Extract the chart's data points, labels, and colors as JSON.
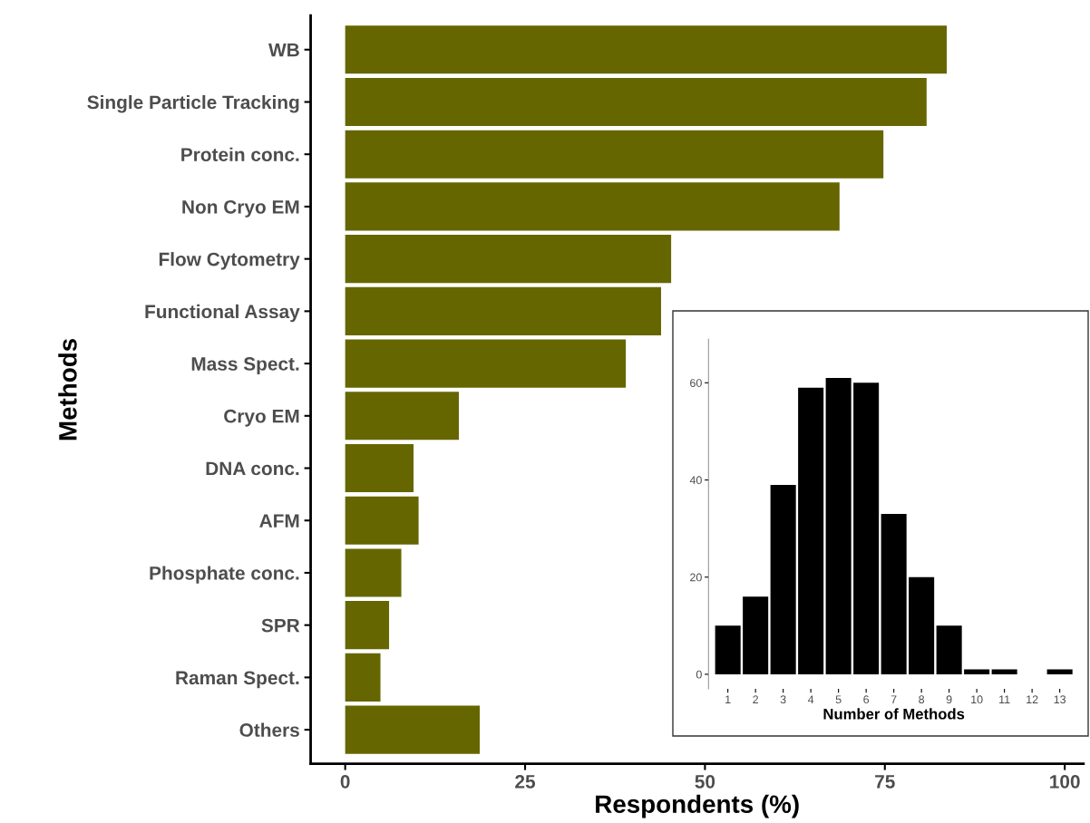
{
  "chart_data": [
    {
      "type": "bar",
      "orientation": "horizontal",
      "xlabel": "Respondents (%)",
      "ylabel": "Methods",
      "categories": [
        "WB",
        "Single Particle Tracking",
        "Protein conc.",
        "Non Cryo EM",
        "Flow Cytometry",
        "Functional Assay",
        "Mass Spect.",
        "Cryo EM",
        "DNA conc.",
        "AFM",
        "Phosphate conc.",
        "SPR",
        "Raman Spect.",
        "Others"
      ],
      "values": [
        83.6,
        80.8,
        74.8,
        68.7,
        45.3,
        43.9,
        39.0,
        15.8,
        9.5,
        10.2,
        7.8,
        6.1,
        4.9,
        18.7
      ],
      "color": "#666600",
      "xlim": [
        -4.8,
        102.6
      ],
      "xticks": [
        0,
        25,
        50,
        75,
        100
      ]
    },
    {
      "type": "bar",
      "xlabel": "Number of Methods",
      "categories": [
        "1",
        "2",
        "3",
        "4",
        "5",
        "6",
        "7",
        "8",
        "9",
        "10",
        "11",
        "12",
        "13"
      ],
      "values": [
        10,
        16,
        39,
        59,
        61,
        60,
        33,
        20,
        10,
        1,
        1,
        0,
        1
      ],
      "color": "#000000",
      "ylim": [
        -3,
        69
      ],
      "yticks": [
        0,
        20,
        40,
        60
      ]
    }
  ]
}
